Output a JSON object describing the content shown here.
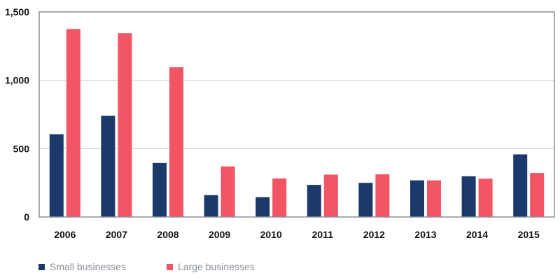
{
  "chart_data": {
    "type": "bar",
    "title": "",
    "xlabel": "",
    "ylabel": "",
    "categories": [
      "2006",
      "2007",
      "2008",
      "2009",
      "2010",
      "2011",
      "2012",
      "2013",
      "2014",
      "2015"
    ],
    "series": [
      {
        "name": "Small businesses",
        "color": "#1b3a6b",
        "values": [
          605,
          740,
          395,
          160,
          145,
          235,
          250,
          268,
          298,
          458
        ]
      },
      {
        "name": "Large businesses",
        "color": "#f25563",
        "values": [
          1375,
          1345,
          1095,
          370,
          282,
          310,
          312,
          268,
          280,
          322
        ]
      }
    ],
    "ylim": [
      0,
      1500
    ],
    "yticks": [
      0,
      500,
      1000,
      1500
    ],
    "ytick_labels": [
      "0",
      "500",
      "1,000",
      "1,500"
    ],
    "grid": true,
    "legend_position": "bottom-left"
  }
}
